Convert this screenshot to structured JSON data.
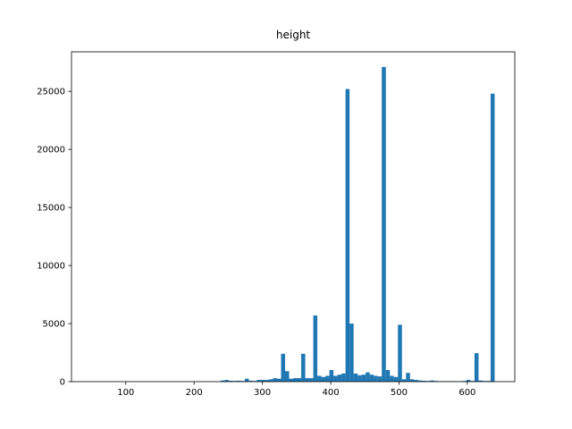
{
  "chart_data": {
    "type": "histogram",
    "title": "height",
    "color": "#1f77b4",
    "bins": [
      50,
      55.9,
      61.8,
      67.7,
      73.6,
      79.5,
      85.4,
      91.3,
      97.2,
      103.1,
      109,
      114.9,
      120.8,
      126.7,
      132.6,
      138.5,
      144.4,
      150.3,
      156.2,
      162.1,
      168,
      173.9,
      179.8,
      185.7,
      191.6,
      197.5,
      203.4,
      209.3,
      215.2,
      221.1,
      227,
      232.9,
      238.8,
      244.7,
      250.6,
      256.5,
      262.4,
      268.3,
      274.2,
      280.1,
      286,
      291.9,
      297.8,
      303.7,
      309.6,
      315.5,
      321.4,
      327.3,
      333.2,
      339.1,
      345,
      350.9,
      356.8,
      362.7,
      368.6,
      374.5,
      380.4,
      386.3,
      392.2,
      398.1,
      404,
      409.9,
      415.8,
      421.7,
      427.6,
      433.5,
      439.4,
      445.3,
      451.2,
      457.1,
      463,
      468.9,
      474.8,
      480.7,
      486.6,
      492.5,
      498.4,
      504.3,
      510.2,
      516.1,
      522,
      527.9,
      533.8,
      539.7,
      545.6,
      551.5,
      557.4,
      563.3,
      569.2,
      575.1,
      581,
      586.9,
      592.8,
      598.7,
      604.6,
      610.5,
      616.4,
      622.3,
      628.2,
      634.1,
      640
    ],
    "values": [
      0,
      0,
      0,
      0,
      0,
      0,
      0,
      0,
      0,
      0,
      0,
      0,
      0,
      0,
      0,
      0,
      0,
      0,
      0,
      0,
      0,
      0,
      0,
      0,
      0,
      0,
      0,
      0,
      0,
      0,
      0,
      0,
      100,
      150,
      80,
      60,
      80,
      60,
      250,
      80,
      60,
      150,
      150,
      150,
      200,
      300,
      250,
      2400,
      900,
      250,
      300,
      300,
      2400,
      300,
      300,
      5700,
      500,
      400,
      500,
      1000,
      500,
      600,
      700,
      25200,
      5000,
      700,
      550,
      600,
      800,
      600,
      500,
      450,
      27100,
      1000,
      500,
      400,
      4900,
      200,
      750,
      200,
      150,
      100,
      80,
      60,
      100,
      60,
      40,
      40,
      40,
      40,
      40,
      40,
      60,
      150,
      60,
      2450,
      100,
      60,
      60,
      24800
    ],
    "xlim": [
      20.5,
      669.5
    ],
    "ylim": [
      0,
      28400
    ],
    "xticks": [
      100,
      200,
      300,
      400,
      500,
      600
    ],
    "yticks": [
      0,
      5000,
      10000,
      15000,
      20000,
      25000
    ]
  }
}
